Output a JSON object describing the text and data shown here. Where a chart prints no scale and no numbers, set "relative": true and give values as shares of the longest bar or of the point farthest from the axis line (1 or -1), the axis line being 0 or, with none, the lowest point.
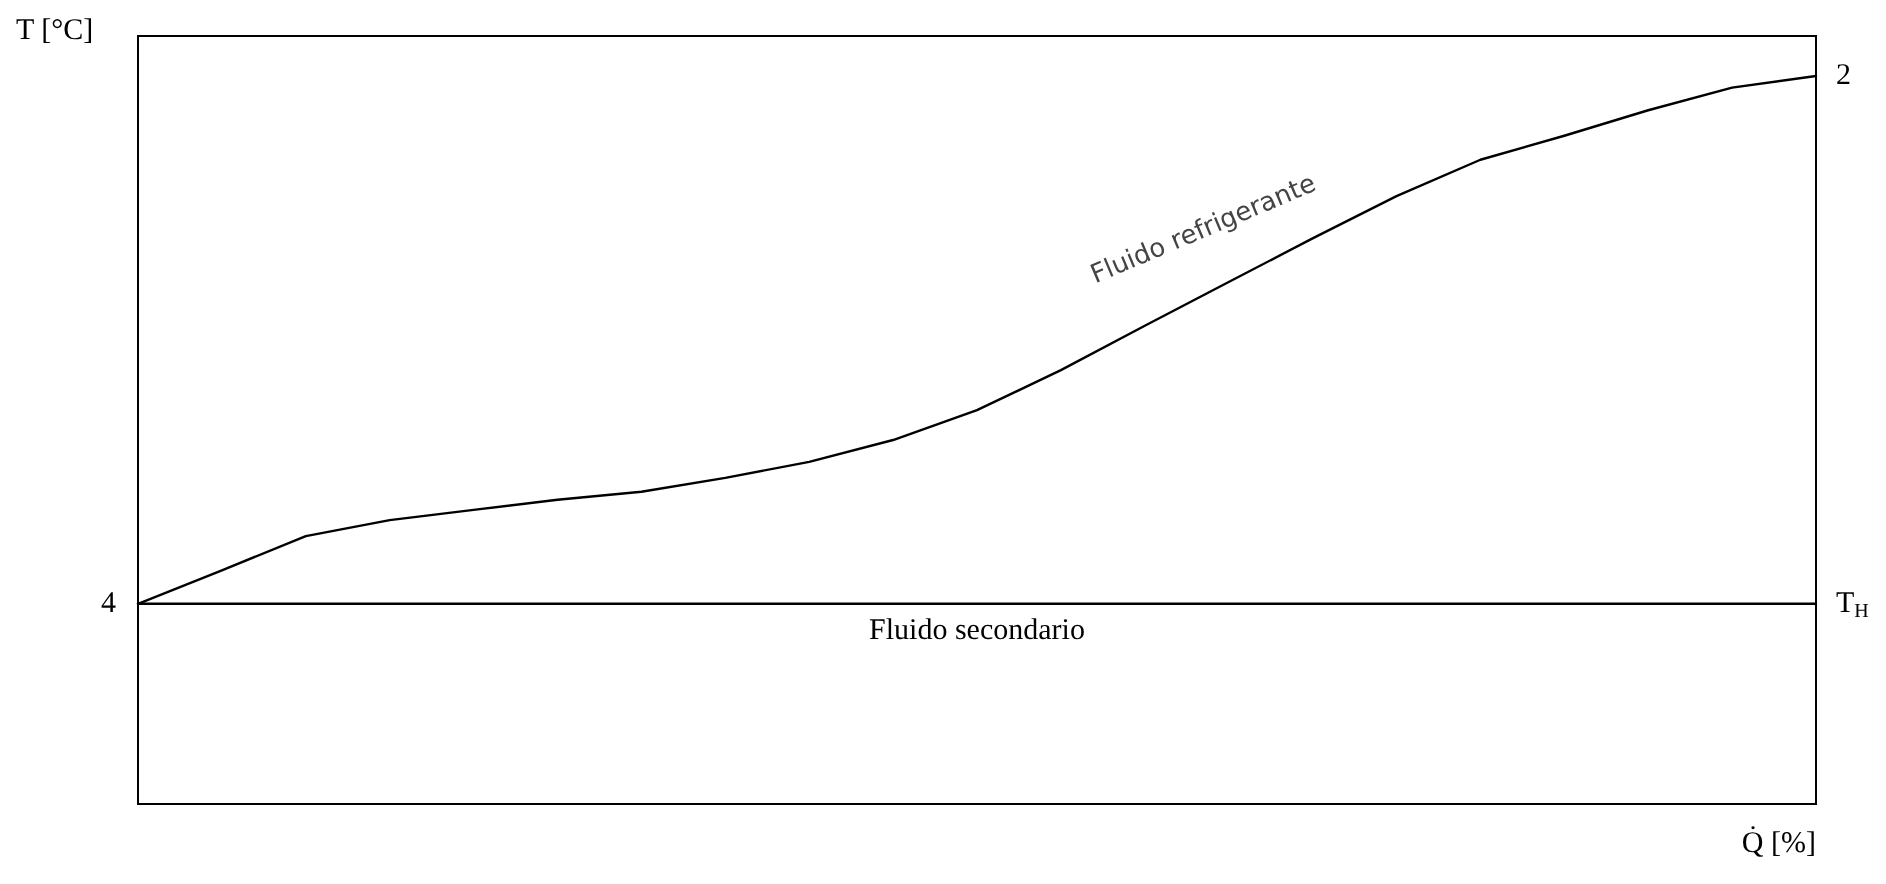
{
  "chart_data": {
    "type": "line",
    "relative": true,
    "ylabel": "T [°C]",
    "xlabel": "Q̇ [%]",
    "categories": [
      null,
      null,
      null,
      null,
      null,
      null,
      null,
      null,
      null,
      null,
      null,
      null,
      null,
      null,
      null,
      null,
      null,
      null,
      null,
      null,
      null
    ],
    "series": [
      {
        "name": "Fluido refrigerante",
        "color": "#000000",
        "values": [
          0.275,
          0.321,
          0.368,
          0.39,
          0.404,
          0.418,
          0.429,
          0.448,
          0.47,
          0.5,
          0.541,
          0.596,
          0.657,
          0.717,
          0.777,
          0.835,
          0.885,
          0.918,
          0.953,
          0.984,
          1
        ]
      },
      {
        "name": "Fluido secondario",
        "color": "#000000",
        "values": [
          0.275,
          0.275,
          0.275,
          0.275,
          0.275,
          0.275,
          0.275,
          0.275,
          0.275,
          0.275,
          0.275,
          0.275,
          0.275,
          0.275,
          0.275,
          0.275,
          0.275,
          0.275,
          0.275,
          0.275,
          0.275
        ]
      }
    ],
    "annotations": [
      "4",
      "2",
      "T$_{H}$"
    ],
    "legend": false,
    "grid": false,
    "marker": "none",
    "line_style": "solid"
  }
}
